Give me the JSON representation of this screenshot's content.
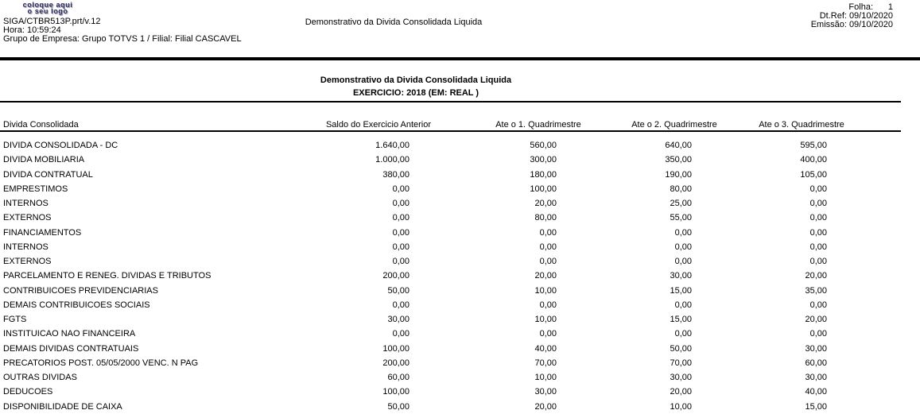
{
  "logo": {
    "line1": "coloque aqui",
    "line2": "o seu logo"
  },
  "header": {
    "program": "SIGA/CTBR513P.prt/v.12",
    "time": "Hora: 10:59:24",
    "company": "Grupo de Empresa: Grupo TOTVS 1 / Filial: Filial CASCAVEL",
    "center_title": "Demonstrativo da Divida Consolidada Liquida",
    "page_label": "Folha:",
    "page_value": "1",
    "ref_label": "Dt.Ref:",
    "ref_value": "09/10/2020",
    "emission_label": "Emissão:",
    "emission_value": "09/10/2020"
  },
  "report": {
    "title": "Demonstrativo da Divida Consolidada Liquida",
    "subtitle": "EXERCICIO: 2018 (EM: REAL )"
  },
  "table": {
    "columns": [
      "Divida Consolidada",
      "Saldo do Exercicio Anterior",
      "Ate o 1. Quadrimestre",
      "Ate o 2. Quadrimestre",
      "Ate o 3. Quadrimestre"
    ],
    "rows": [
      {
        "label": "DIVIDA CONSOLIDADA - DC",
        "values": [
          "1.640,00",
          "560,00",
          "640,00",
          "595,00"
        ]
      },
      {
        "label": "DIVIDA MOBILIARIA",
        "values": [
          "1.000,00",
          "300,00",
          "350,00",
          "400,00"
        ]
      },
      {
        "label": "DIVIDA CONTRATUAL",
        "values": [
          "380,00",
          "180,00",
          "190,00",
          "105,00"
        ]
      },
      {
        "label": "EMPRESTIMOS",
        "values": [
          "0,00",
          "100,00",
          "80,00",
          "0,00"
        ]
      },
      {
        "label": "INTERNOS",
        "values": [
          "0,00",
          "20,00",
          "25,00",
          "0,00"
        ]
      },
      {
        "label": "EXTERNOS",
        "values": [
          "0,00",
          "80,00",
          "55,00",
          "0,00"
        ]
      },
      {
        "label": "FINANCIAMENTOS",
        "values": [
          "0,00",
          "0,00",
          "0,00",
          "0,00"
        ]
      },
      {
        "label": "INTERNOS",
        "values": [
          "0,00",
          "0,00",
          "0,00",
          "0,00"
        ]
      },
      {
        "label": "EXTERNOS",
        "values": [
          "0,00",
          "0,00",
          "0,00",
          "0,00"
        ]
      },
      {
        "label": "PARCELAMENTO E RENEG. DIVIDAS E TRIBUTOS",
        "values": [
          "200,00",
          "20,00",
          "30,00",
          "20,00"
        ]
      },
      {
        "label": "CONTRIBUICOES PREVIDENCIARIAS",
        "values": [
          "50,00",
          "10,00",
          "15,00",
          "35,00"
        ]
      },
      {
        "label": "DEMAIS CONTRIBUICOES SOCIAIS",
        "values": [
          "0,00",
          "0,00",
          "0,00",
          "0,00"
        ]
      },
      {
        "label": "FGTS",
        "values": [
          "30,00",
          "10,00",
          "15,00",
          "20,00"
        ]
      },
      {
        "label": "INSTITUICAO NAO FINANCEIRA",
        "values": [
          "0,00",
          "0,00",
          "0,00",
          "0,00"
        ]
      },
      {
        "label": "DEMAIS DIVIDAS CONTRATUAIS",
        "values": [
          "100,00",
          "40,00",
          "50,00",
          "30,00"
        ]
      },
      {
        "label": "PRECATORIOS POST. 05/05/2000 VENC. N PAG",
        "values": [
          "200,00",
          "70,00",
          "70,00",
          "60,00"
        ]
      },
      {
        "label": "OUTRAS DIVIDAS",
        "values": [
          "60,00",
          "10,00",
          "30,00",
          "30,00"
        ]
      },
      {
        "label": "DEDUCOES",
        "values": [
          "100,00",
          "30,00",
          "20,00",
          "40,00"
        ]
      },
      {
        "label": "DISPONIBILIDADE DE CAIXA",
        "values": [
          "50,00",
          "20,00",
          "10,00",
          "15,00"
        ]
      }
    ]
  },
  "colors": {
    "background": "#ffffff",
    "text": "#000000",
    "logo_text": "#2e2e5e",
    "separator": "#000000"
  }
}
